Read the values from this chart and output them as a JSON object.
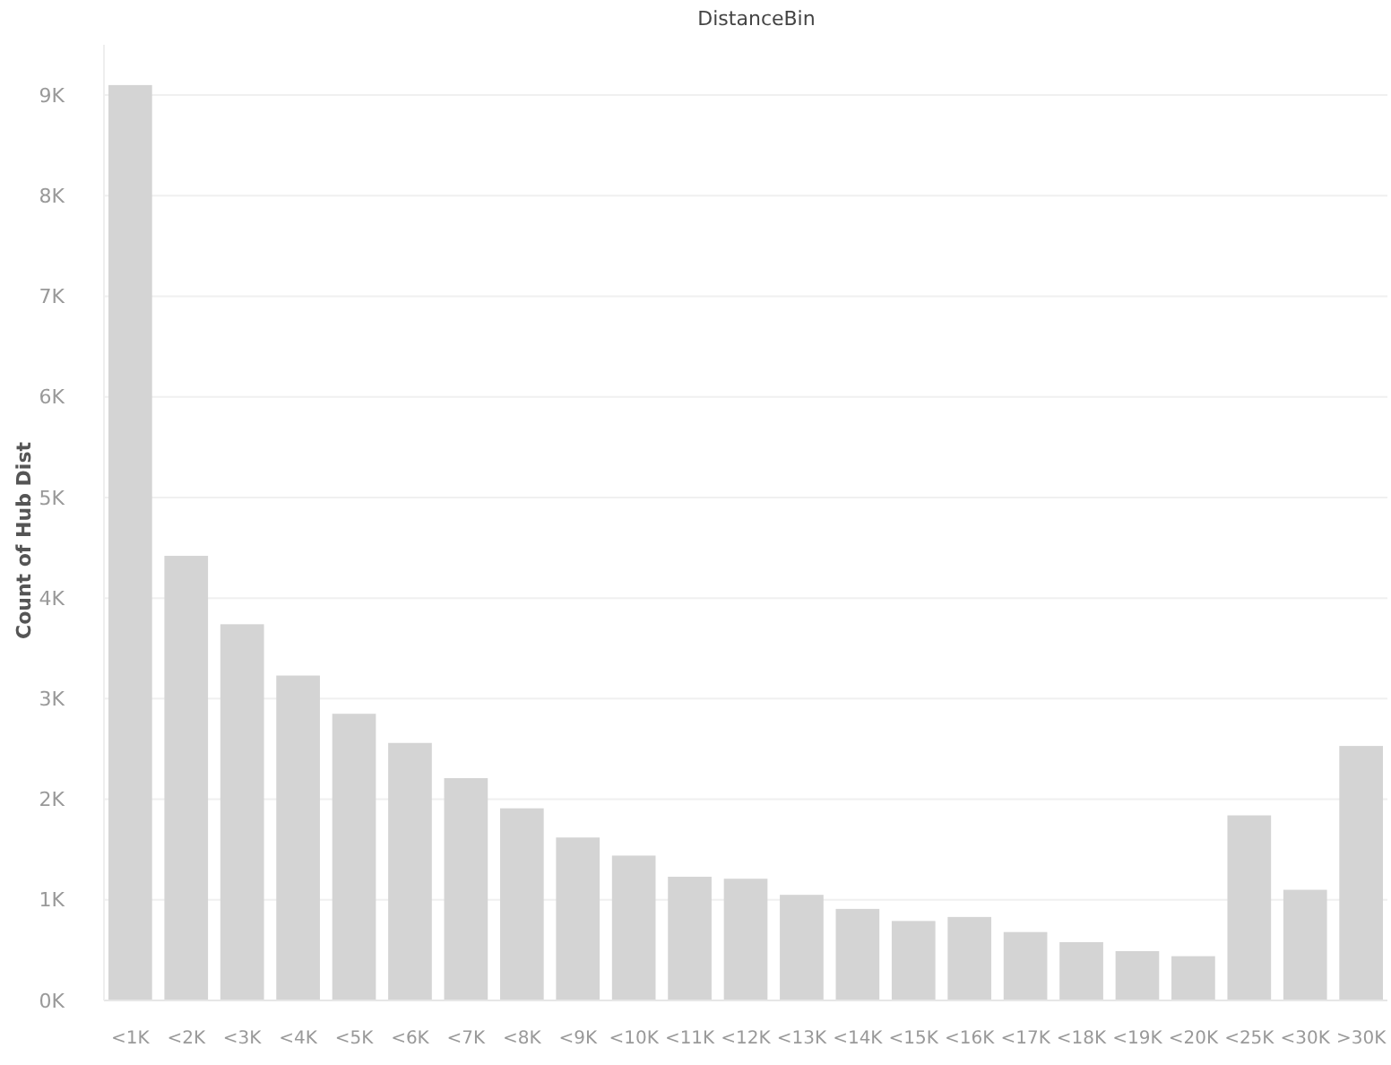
{
  "chart_data": {
    "type": "bar",
    "title": "DistanceBin",
    "ylabel": "Count of Hub Dist",
    "categories": [
      "<1K",
      "<2K",
      "<3K",
      "<4K",
      "<5K",
      "<6K",
      "<7K",
      "<8K",
      "<9K",
      "<10K",
      "<11K",
      "<12K",
      "<13K",
      "<14K",
      "<15K",
      "<16K",
      "<17K",
      "<18K",
      "<19K",
      "<20K",
      "<25K",
      "<30K",
      ">30K"
    ],
    "values": [
      9100,
      4420,
      3740,
      3230,
      2850,
      2560,
      2210,
      1910,
      1620,
      1440,
      1230,
      1210,
      1050,
      910,
      790,
      830,
      680,
      580,
      490,
      440,
      1840,
      1100,
      2530
    ],
    "color": "#d4d4d4",
    "ylim": [
      0,
      9500
    ],
    "yticks": [
      {
        "value": 0,
        "label": "0K"
      },
      {
        "value": 1000,
        "label": "1K"
      },
      {
        "value": 2000,
        "label": "2K"
      },
      {
        "value": 3000,
        "label": "3K"
      },
      {
        "value": 4000,
        "label": "4K"
      },
      {
        "value": 5000,
        "label": "5K"
      },
      {
        "value": 6000,
        "label": "6K"
      },
      {
        "value": 7000,
        "label": "7K"
      },
      {
        "value": 8000,
        "label": "8K"
      },
      {
        "value": 9000,
        "label": "9K"
      }
    ],
    "grid": "y"
  }
}
